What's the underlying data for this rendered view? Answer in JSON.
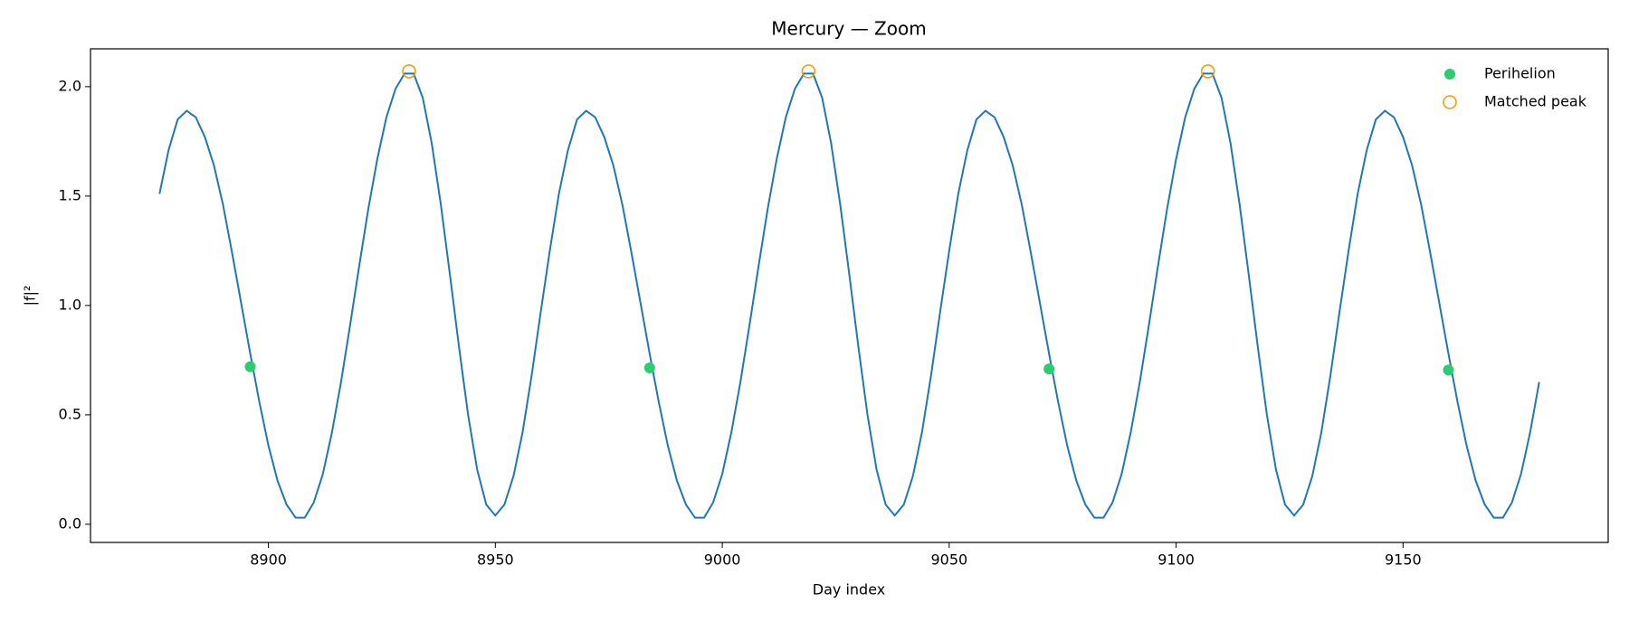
{
  "chart_data": {
    "type": "line",
    "title": "Mercury — Zoom",
    "x_label": "Day index",
    "y_label": "|f|²",
    "xlim": [
      8860.8,
      9195.2
    ],
    "ylim": [
      -0.083,
      2.173
    ],
    "xticks": [
      8900,
      8950,
      9000,
      9050,
      9100,
      9150
    ],
    "yticks": [
      {
        "value": 0,
        "label": "0.0"
      },
      {
        "value": 0.5,
        "label": "0.5"
      },
      {
        "value": 1,
        "label": "1.0"
      },
      {
        "value": 1.5,
        "label": "1.5"
      },
      {
        "value": 2,
        "label": "2.0"
      }
    ],
    "grid": false,
    "legend": "upper right",
    "series": [
      {
        "type": "line",
        "color": "#1f77b4",
        "x": [
          8876,
          8878,
          8880,
          8882,
          8884,
          8886,
          8888,
          8890,
          8892,
          8894,
          8896,
          8898,
          8900,
          8902,
          8904,
          8906,
          8908,
          8910,
          8912,
          8914,
          8916,
          8918,
          8920,
          8922,
          8924,
          8926,
          8928,
          8930,
          8932,
          8934,
          8936,
          8938,
          8940,
          8942,
          8944,
          8946,
          8948,
          8950,
          8952,
          8954,
          8956,
          8958,
          8960,
          8962,
          8964,
          8966,
          8968,
          8970,
          8972,
          8974,
          8976,
          8978,
          8980,
          8982,
          8984,
          8986,
          8988,
          8990,
          8992,
          8994,
          8996,
          8998,
          9000,
          9002,
          9004,
          9006,
          9008,
          9010,
          9012,
          9014,
          9016,
          9018,
          9020,
          9022,
          9024,
          9026,
          9028,
          9030,
          9032,
          9034,
          9036,
          9038,
          9040,
          9042,
          9044,
          9046,
          9048,
          9050,
          9052,
          9054,
          9056,
          9058,
          9060,
          9062,
          9064,
          9066,
          9068,
          9070,
          9072,
          9074,
          9076,
          9078,
          9080,
          9082,
          9084,
          9086,
          9088,
          9090,
          9092,
          9094,
          9096,
          9098,
          9100,
          9102,
          9104,
          9106,
          9108,
          9110,
          9112,
          9114,
          9116,
          9118,
          9120,
          9122,
          9124,
          9126,
          9128,
          9130,
          9132,
          9134,
          9136,
          9138,
          9140,
          9142,
          9144,
          9146,
          9148,
          9150,
          9152,
          9154,
          9156,
          9158,
          9160,
          9162,
          9164,
          9166,
          9168,
          9170,
          9172,
          9174,
          9176,
          9178,
          9180
        ],
        "values": [
          1.51,
          1.71,
          1.85,
          1.89,
          1.86,
          1.77,
          1.64,
          1.46,
          1.24,
          1.01,
          0.78,
          0.56,
          0.36,
          0.2,
          0.09,
          0.03,
          0.03,
          0.1,
          0.23,
          0.42,
          0.65,
          0.91,
          1.18,
          1.44,
          1.67,
          1.86,
          1.99,
          2.06,
          2.06,
          1.95,
          1.74,
          1.46,
          1.14,
          0.81,
          0.5,
          0.25,
          0.09,
          0.04,
          0.09,
          0.22,
          0.42,
          0.68,
          0.97,
          1.25,
          1.51,
          1.71,
          1.85,
          1.89,
          1.86,
          1.77,
          1.64,
          1.46,
          1.24,
          1.01,
          0.78,
          0.56,
          0.36,
          0.2,
          0.09,
          0.03,
          0.03,
          0.1,
          0.23,
          0.42,
          0.65,
          0.91,
          1.18,
          1.44,
          1.67,
          1.86,
          1.99,
          2.06,
          2.06,
          1.95,
          1.74,
          1.46,
          1.14,
          0.81,
          0.5,
          0.25,
          0.09,
          0.04,
          0.09,
          0.22,
          0.42,
          0.68,
          0.97,
          1.25,
          1.51,
          1.71,
          1.85,
          1.89,
          1.86,
          1.77,
          1.64,
          1.46,
          1.24,
          1.01,
          0.78,
          0.56,
          0.36,
          0.2,
          0.09,
          0.03,
          0.03,
          0.1,
          0.23,
          0.42,
          0.65,
          0.91,
          1.18,
          1.44,
          1.67,
          1.86,
          1.99,
          2.06,
          2.06,
          1.95,
          1.74,
          1.46,
          1.14,
          0.81,
          0.5,
          0.25,
          0.09,
          0.04,
          0.09,
          0.22,
          0.42,
          0.68,
          0.97,
          1.25,
          1.51,
          1.71,
          1.85,
          1.89,
          1.86,
          1.77,
          1.64,
          1.46,
          1.24,
          1.01,
          0.78,
          0.56,
          0.36,
          0.2,
          0.09,
          0.03,
          0.03,
          0.1,
          0.23,
          0.42,
          0.65
        ]
      },
      {
        "type": "scatter",
        "name": "Perihelion",
        "color": "#2ecc71",
        "marker": "filled",
        "x": [
          8896,
          8984,
          9072,
          9160
        ],
        "values": [
          0.72,
          0.715,
          0.71,
          0.705
        ]
      },
      {
        "type": "scatter",
        "name": "Matched peak",
        "color": "#f39c12",
        "marker": "open",
        "x": [
          8931,
          9019,
          9107
        ],
        "values": [
          2.07,
          2.07,
          2.07
        ]
      }
    ]
  }
}
